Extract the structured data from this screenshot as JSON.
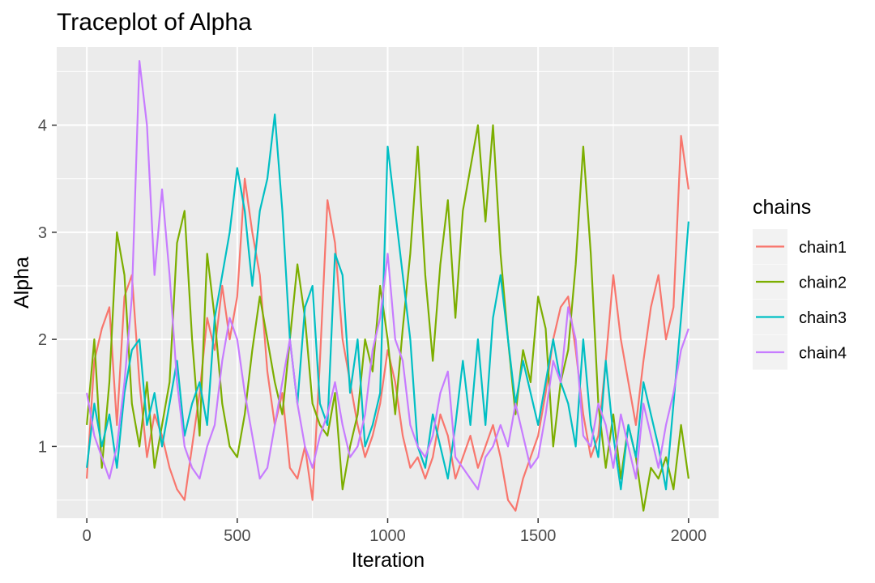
{
  "chart_data": {
    "type": "line",
    "title": "Traceplot of Alpha",
    "xlabel": "Iteration",
    "ylabel": "Alpha",
    "xlim": [
      -100,
      2100
    ],
    "ylim": [
      0.33,
      4.73
    ],
    "x_ticks": [
      0,
      500,
      1000,
      1500,
      2000
    ],
    "x_tick_labels": [
      "0",
      "500",
      "1000",
      "1500",
      "2000"
    ],
    "y_ticks": [
      1,
      2,
      3,
      4
    ],
    "y_tick_labels": [
      "1",
      "2",
      "3",
      "4"
    ],
    "grid": true,
    "legend_title": "chains",
    "legend_position": "right",
    "series": [
      {
        "name": "chain1",
        "color": "#F8766D",
        "x": [
          0,
          25,
          50,
          75,
          100,
          125,
          150,
          175,
          200,
          225,
          250,
          275,
          300,
          325,
          350,
          375,
          400,
          425,
          450,
          475,
          500,
          525,
          550,
          575,
          600,
          625,
          650,
          675,
          700,
          725,
          750,
          775,
          800,
          825,
          850,
          875,
          900,
          925,
          950,
          975,
          1000,
          1025,
          1050,
          1075,
          1100,
          1125,
          1150,
          1175,
          1200,
          1225,
          1250,
          1275,
          1300,
          1325,
          1350,
          1375,
          1400,
          1425,
          1450,
          1475,
          1500,
          1525,
          1550,
          1575,
          1600,
          1625,
          1650,
          1675,
          1700,
          1725,
          1750,
          1775,
          1800,
          1825,
          1850,
          1875,
          1900,
          1925,
          1950,
          1975,
          2000
        ],
        "values": [
          0.7,
          1.8,
          2.1,
          2.3,
          1.2,
          2.4,
          2.6,
          1.6,
          0.9,
          1.3,
          1.1,
          0.8,
          0.6,
          0.5,
          1.0,
          1.5,
          2.2,
          1.9,
          2.5,
          2.0,
          2.4,
          3.5,
          3.0,
          2.6,
          1.7,
          1.2,
          1.5,
          0.8,
          0.7,
          1.0,
          0.5,
          1.8,
          3.3,
          2.9,
          2.0,
          1.6,
          1.2,
          0.9,
          1.1,
          1.4,
          1.9,
          1.6,
          1.1,
          0.8,
          0.9,
          0.7,
          0.9,
          1.3,
          1.1,
          0.7,
          0.9,
          1.1,
          0.8,
          1.0,
          1.2,
          0.9,
          0.5,
          0.4,
          0.7,
          0.9,
          1.1,
          1.5,
          2.0,
          2.3,
          2.4,
          1.9,
          1.3,
          0.9,
          1.1,
          1.8,
          2.6,
          2.0,
          1.6,
          1.2,
          1.8,
          2.3,
          2.6,
          2.0,
          2.3,
          3.9,
          3.4
        ]
      },
      {
        "name": "chain2",
        "color": "#7CAE00",
        "x": [
          0,
          25,
          50,
          75,
          100,
          125,
          150,
          175,
          200,
          225,
          250,
          275,
          300,
          325,
          350,
          375,
          400,
          425,
          450,
          475,
          500,
          525,
          550,
          575,
          600,
          625,
          650,
          675,
          700,
          725,
          750,
          775,
          800,
          825,
          850,
          875,
          900,
          925,
          950,
          975,
          1000,
          1025,
          1050,
          1075,
          1100,
          1125,
          1150,
          1175,
          1200,
          1225,
          1250,
          1275,
          1300,
          1325,
          1350,
          1375,
          1400,
          1425,
          1450,
          1475,
          1500,
          1525,
          1550,
          1575,
          1600,
          1625,
          1650,
          1675,
          1700,
          1725,
          1750,
          1775,
          1800,
          1825,
          1850,
          1875,
          1900,
          1925,
          1950,
          1975,
          2000
        ],
        "values": [
          1.2,
          2.0,
          0.8,
          1.6,
          3.0,
          2.6,
          1.4,
          1.0,
          1.6,
          0.8,
          1.2,
          1.6,
          2.9,
          3.2,
          2.0,
          1.1,
          2.8,
          2.2,
          1.4,
          1.0,
          0.9,
          1.3,
          1.9,
          2.4,
          2.0,
          1.6,
          1.3,
          2.0,
          2.7,
          2.2,
          1.4,
          1.2,
          1.1,
          1.5,
          0.6,
          1.0,
          1.3,
          2.0,
          1.7,
          2.5,
          2.0,
          1.3,
          2.1,
          2.8,
          3.8,
          2.6,
          1.8,
          2.7,
          3.3,
          2.2,
          3.2,
          3.6,
          4.0,
          3.1,
          4.0,
          2.8,
          2.0,
          1.3,
          1.9,
          1.6,
          2.4,
          2.1,
          1.0,
          1.6,
          1.9,
          2.7,
          3.8,
          2.8,
          1.4,
          0.8,
          1.3,
          0.7,
          1.2,
          0.9,
          0.4,
          0.8,
          0.7,
          0.9,
          0.6,
          1.2,
          0.7
        ]
      },
      {
        "name": "chain3",
        "color": "#00BFC4",
        "x": [
          0,
          25,
          50,
          75,
          100,
          125,
          150,
          175,
          200,
          225,
          250,
          275,
          300,
          325,
          350,
          375,
          400,
          425,
          450,
          475,
          500,
          525,
          550,
          575,
          600,
          625,
          650,
          675,
          700,
          725,
          750,
          775,
          800,
          825,
          850,
          875,
          900,
          925,
          950,
          975,
          1000,
          1025,
          1050,
          1075,
          1100,
          1125,
          1150,
          1175,
          1200,
          1225,
          1250,
          1275,
          1300,
          1325,
          1350,
          1375,
          1400,
          1425,
          1450,
          1475,
          1500,
          1525,
          1550,
          1575,
          1600,
          1625,
          1650,
          1675,
          1700,
          1725,
          1750,
          1775,
          1800,
          1825,
          1850,
          1875,
          1900,
          1925,
          1950,
          1975,
          2000
        ],
        "values": [
          0.8,
          1.4,
          1.0,
          1.3,
          0.8,
          1.5,
          1.9,
          2.0,
          1.2,
          1.5,
          1.0,
          1.4,
          1.8,
          1.1,
          1.4,
          1.6,
          1.2,
          2.2,
          2.6,
          3.0,
          3.6,
          3.2,
          2.5,
          3.2,
          3.5,
          4.1,
          3.2,
          2.0,
          1.4,
          2.3,
          2.5,
          1.4,
          1.2,
          2.8,
          2.6,
          1.5,
          2.0,
          1.0,
          1.2,
          1.5,
          3.8,
          3.2,
          2.6,
          2.0,
          1.0,
          0.8,
          1.3,
          1.0,
          0.7,
          1.2,
          1.8,
          1.2,
          2.0,
          1.2,
          2.2,
          2.6,
          2.0,
          1.4,
          1.8,
          1.5,
          1.2,
          1.6,
          2.0,
          1.6,
          1.4,
          1.0,
          2.0,
          1.2,
          0.9,
          1.8,
          1.1,
          0.6,
          1.2,
          0.9,
          1.6,
          1.3,
          1.0,
          0.6,
          1.4,
          2.2,
          3.1
        ]
      },
      {
        "name": "chain4",
        "color": "#C77CFF",
        "x": [
          0,
          25,
          50,
          75,
          100,
          125,
          150,
          175,
          200,
          225,
          250,
          275,
          300,
          325,
          350,
          375,
          400,
          425,
          450,
          475,
          500,
          525,
          550,
          575,
          600,
          625,
          650,
          675,
          700,
          725,
          750,
          775,
          800,
          825,
          850,
          875,
          900,
          925,
          950,
          975,
          1000,
          1025,
          1050,
          1075,
          1100,
          1125,
          1150,
          1175,
          1200,
          1225,
          1250,
          1275,
          1300,
          1325,
          1350,
          1375,
          1400,
          1425,
          1450,
          1475,
          1500,
          1525,
          1550,
          1575,
          1600,
          1625,
          1650,
          1675,
          1700,
          1725,
          1750,
          1775,
          1800,
          1825,
          1850,
          1875,
          1900,
          1925,
          1950,
          1975,
          2000
        ],
        "values": [
          1.5,
          1.1,
          0.9,
          0.7,
          1.0,
          1.6,
          2.4,
          4.6,
          4.0,
          2.6,
          3.4,
          2.6,
          1.6,
          1.0,
          0.8,
          0.7,
          1.0,
          1.2,
          1.8,
          2.2,
          2.0,
          1.5,
          1.1,
          0.7,
          0.8,
          1.2,
          1.6,
          2.0,
          1.4,
          1.0,
          0.8,
          1.1,
          1.3,
          1.6,
          1.2,
          0.9,
          1.0,
          1.3,
          1.9,
          2.2,
          2.8,
          2.0,
          1.8,
          1.2,
          1.0,
          0.9,
          1.1,
          1.5,
          1.7,
          0.9,
          0.8,
          0.7,
          0.6,
          0.9,
          1.0,
          1.2,
          1.0,
          1.4,
          1.1,
          0.8,
          0.9,
          1.3,
          1.8,
          1.6,
          2.3,
          2.0,
          1.1,
          1.0,
          1.4,
          1.2,
          0.8,
          1.3,
          1.0,
          0.7,
          1.4,
          1.1,
          0.8,
          1.2,
          1.5,
          1.9,
          2.1
        ]
      }
    ]
  }
}
